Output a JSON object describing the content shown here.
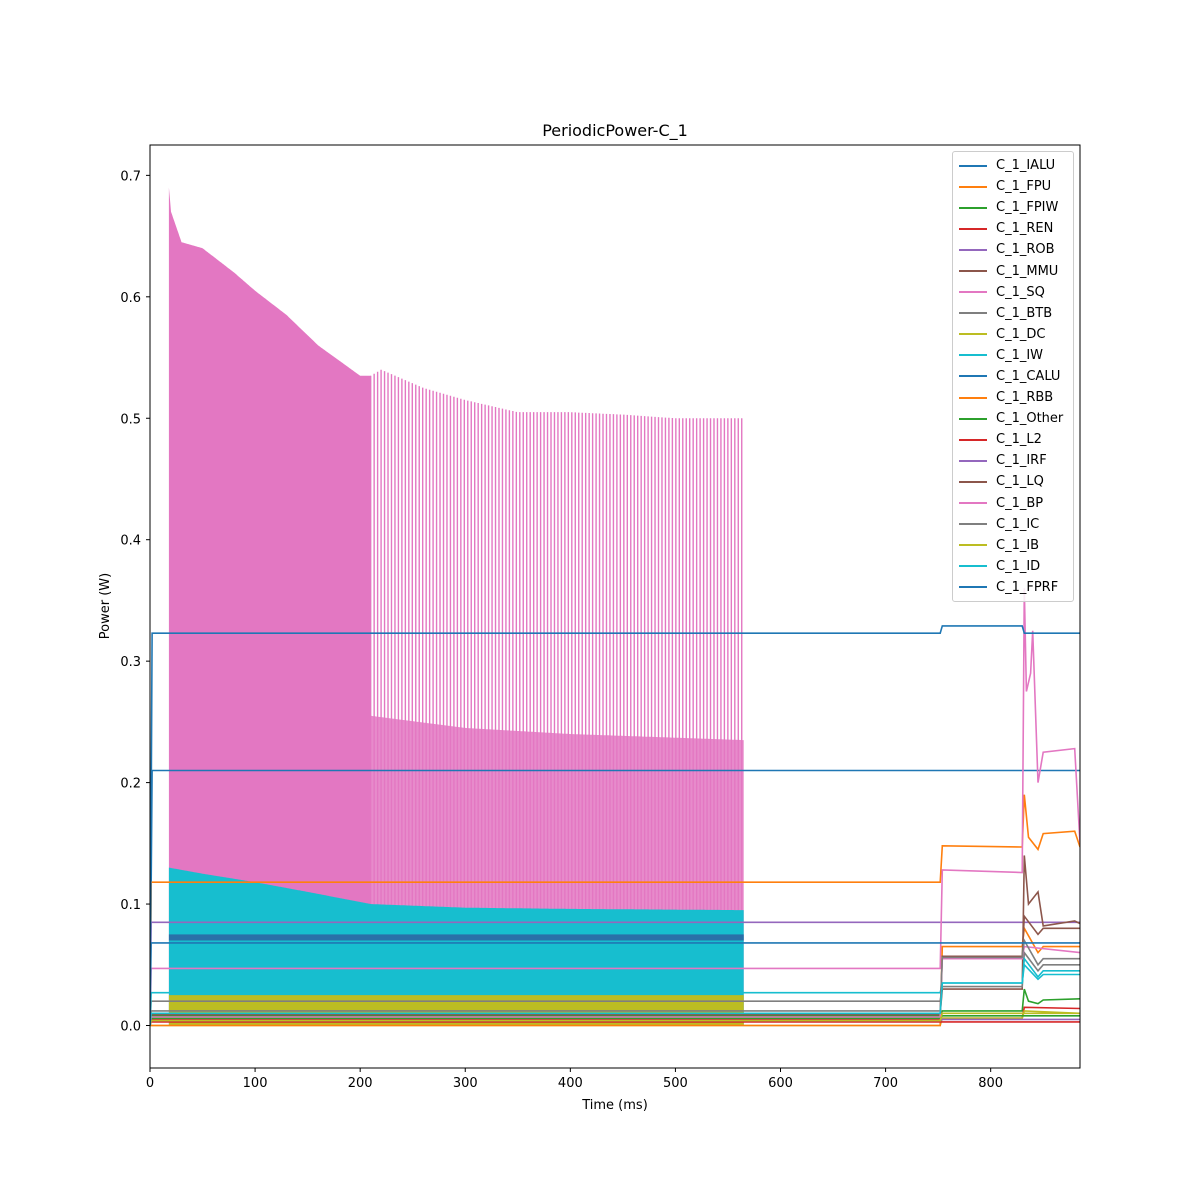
{
  "chart_data": {
    "type": "line",
    "title": "PeriodicPower-C_1",
    "xlabel": "Time (ms)",
    "ylabel": "Power (W)",
    "xlim": [
      0,
      885
    ],
    "ylim": [
      -0.035,
      0.725
    ],
    "x_ticks": [
      "0",
      "100",
      "200",
      "300",
      "400",
      "500",
      "600",
      "700",
      "800"
    ],
    "x_tick_values": [
      0,
      100,
      200,
      300,
      400,
      500,
      600,
      700,
      800
    ],
    "y_ticks": [
      "0.0",
      "0.1",
      "0.2",
      "0.3",
      "0.4",
      "0.5",
      "0.6",
      "0.7"
    ],
    "y_tick_values": [
      0.0,
      0.1,
      0.2,
      0.3,
      0.4,
      0.5,
      0.6,
      0.7
    ],
    "grid": false,
    "legend_position": "top-right",
    "series": [
      {
        "name": "C_1_IALU",
        "color": "#1f77b4",
        "points": [
          [
            0,
            0.0
          ],
          [
            2,
            0.21
          ],
          [
            752,
            0.21
          ],
          [
            885,
            0.21
          ]
        ]
      },
      {
        "name": "C_1_FPU",
        "color": "#ff7f0e",
        "points": [
          [
            0,
            0.0
          ],
          [
            1,
            0.118
          ],
          [
            752,
            0.118
          ],
          [
            754,
            0.148
          ],
          [
            830,
            0.147
          ],
          [
            832,
            0.19
          ],
          [
            836,
            0.155
          ],
          [
            845,
            0.145
          ],
          [
            850,
            0.158
          ],
          [
            880,
            0.16
          ],
          [
            885,
            0.147
          ]
        ]
      },
      {
        "name": "C_1_FPIW",
        "color": "#2ca02c",
        "points": [
          [
            0,
            0.0
          ],
          [
            1,
            0.008
          ],
          [
            752,
            0.008
          ],
          [
            754,
            0.012
          ],
          [
            830,
            0.012
          ],
          [
            832,
            0.03
          ],
          [
            836,
            0.02
          ],
          [
            845,
            0.018
          ],
          [
            850,
            0.021
          ],
          [
            885,
            0.022
          ]
        ]
      },
      {
        "name": "C_1_REN",
        "color": "#d62728",
        "points": [
          [
            0,
            0.0
          ],
          [
            1,
            0.005
          ],
          [
            752,
            0.005
          ],
          [
            754,
            0.006
          ],
          [
            830,
            0.006
          ],
          [
            832,
            0.015
          ],
          [
            885,
            0.014
          ]
        ]
      },
      {
        "name": "C_1_ROB",
        "color": "#9467bd",
        "points": [
          [
            0,
            0.0
          ],
          [
            1,
            0.085
          ],
          [
            752,
            0.085
          ],
          [
            885,
            0.085
          ]
        ]
      },
      {
        "name": "C_1_MMU",
        "color": "#8c564b",
        "points": [
          [
            0,
            0.0
          ],
          [
            1,
            0.01
          ],
          [
            752,
            0.01
          ],
          [
            754,
            0.03
          ],
          [
            830,
            0.03
          ],
          [
            832,
            0.14
          ],
          [
            836,
            0.1
          ],
          [
            845,
            0.11
          ],
          [
            850,
            0.082
          ],
          [
            880,
            0.086
          ],
          [
            885,
            0.084
          ]
        ]
      },
      {
        "name": "C_1_SQ",
        "color": "#e377c2",
        "points": [
          [
            0,
            0.0
          ],
          [
            1,
            0.047
          ],
          [
            752,
            0.047
          ],
          [
            754,
            0.128
          ],
          [
            830,
            0.126
          ],
          [
            832,
            0.36
          ],
          [
            834,
            0.275
          ],
          [
            838,
            0.29
          ],
          [
            840,
            0.325
          ],
          [
            845,
            0.2
          ],
          [
            850,
            0.225
          ],
          [
            880,
            0.228
          ],
          [
            885,
            0.15
          ]
        ]
      },
      {
        "name": "C_1_BTB",
        "color": "#7f7f7f",
        "points": [
          [
            0,
            0.0
          ],
          [
            1,
            0.02
          ],
          [
            752,
            0.02
          ],
          [
            754,
            0.032
          ],
          [
            830,
            0.032
          ],
          [
            832,
            0.06
          ],
          [
            845,
            0.045
          ],
          [
            850,
            0.05
          ],
          [
            885,
            0.05
          ]
        ]
      },
      {
        "name": "C_1_DC",
        "color": "#bcbd22",
        "points": [
          [
            0,
            0.0
          ],
          [
            1,
            0.0
          ],
          [
            752,
            0.0
          ],
          [
            754,
            0.006
          ],
          [
            830,
            0.006
          ],
          [
            832,
            0.012
          ],
          [
            885,
            0.01
          ]
        ]
      },
      {
        "name": "C_1_IW",
        "color": "#17becf",
        "points": [
          [
            0,
            0.0
          ],
          [
            1,
            0.027
          ],
          [
            752,
            0.027
          ],
          [
            754,
            0.035
          ],
          [
            830,
            0.035
          ],
          [
            832,
            0.055
          ],
          [
            845,
            0.04
          ],
          [
            850,
            0.045
          ],
          [
            885,
            0.045
          ]
        ]
      },
      {
        "name": "C_1_CALU",
        "color": "#1f77b4",
        "points": [
          [
            0,
            0.0
          ],
          [
            2,
            0.323
          ],
          [
            752,
            0.323
          ],
          [
            754,
            0.329
          ],
          [
            830,
            0.329
          ],
          [
            832,
            0.323
          ],
          [
            885,
            0.323
          ]
        ]
      },
      {
        "name": "C_1_RBB",
        "color": "#ff7f0e",
        "points": [
          [
            0,
            0.0
          ],
          [
            1,
            0.0
          ],
          [
            752,
            0.0
          ],
          [
            754,
            0.065
          ],
          [
            830,
            0.065
          ],
          [
            832,
            0.08
          ],
          [
            845,
            0.06
          ],
          [
            850,
            0.065
          ],
          [
            885,
            0.065
          ]
        ]
      },
      {
        "name": "C_1_Other",
        "color": "#2ca02c",
        "points": [
          [
            0,
            0.0
          ],
          [
            1,
            0.006
          ],
          [
            752,
            0.006
          ],
          [
            754,
            0.008
          ],
          [
            885,
            0.008
          ]
        ]
      },
      {
        "name": "C_1_L2",
        "color": "#d62728",
        "points": [
          [
            0,
            0.0
          ],
          [
            1,
            0.003
          ],
          [
            885,
            0.003
          ]
        ]
      },
      {
        "name": "C_1_IRF",
        "color": "#9467bd",
        "points": [
          [
            0,
            0.0
          ],
          [
            1,
            0.004
          ],
          [
            752,
            0.004
          ],
          [
            754,
            0.005
          ],
          [
            885,
            0.005
          ]
        ]
      },
      {
        "name": "C_1_LQ",
        "color": "#8c564b",
        "points": [
          [
            0,
            0.0
          ],
          [
            1,
            0.009
          ],
          [
            752,
            0.009
          ],
          [
            754,
            0.057
          ],
          [
            830,
            0.057
          ],
          [
            832,
            0.09
          ],
          [
            845,
            0.075
          ],
          [
            850,
            0.08
          ],
          [
            885,
            0.08
          ]
        ]
      },
      {
        "name": "C_1_BP",
        "color": "#e377c2",
        "points": [
          [
            0,
            0.0
          ],
          [
            1,
            0.007
          ],
          [
            752,
            0.007
          ],
          [
            754,
            0.055
          ],
          [
            830,
            0.055
          ],
          [
            832,
            0.065
          ],
          [
            885,
            0.06
          ]
        ]
      },
      {
        "name": "C_1_IC",
        "color": "#7f7f7f",
        "points": [
          [
            0,
            0.0
          ],
          [
            1,
            0.012
          ],
          [
            752,
            0.012
          ],
          [
            754,
            0.056
          ],
          [
            830,
            0.056
          ],
          [
            832,
            0.07
          ],
          [
            845,
            0.05
          ],
          [
            850,
            0.055
          ],
          [
            885,
            0.055
          ]
        ]
      },
      {
        "name": "C_1_IB",
        "color": "#bcbd22",
        "points": [
          [
            0,
            0.0
          ],
          [
            1,
            0.004
          ],
          [
            752,
            0.004
          ],
          [
            754,
            0.01
          ],
          [
            885,
            0.01
          ]
        ]
      },
      {
        "name": "C_1_ID",
        "color": "#17becf",
        "points": [
          [
            0,
            0.0
          ],
          [
            1,
            0.01
          ],
          [
            752,
            0.01
          ],
          [
            754,
            0.035
          ],
          [
            830,
            0.035
          ],
          [
            832,
            0.05
          ],
          [
            845,
            0.038
          ],
          [
            850,
            0.042
          ],
          [
            885,
            0.042
          ]
        ]
      },
      {
        "name": "C_1_FPRF",
        "color": "#1f77b4",
        "points": [
          [
            0,
            0.0
          ],
          [
            1,
            0.068
          ],
          [
            752,
            0.068
          ],
          [
            885,
            0.068
          ]
        ]
      }
    ],
    "oscillating_region": {
      "x_range": [
        18,
        565
      ],
      "phase_change_x": 210,
      "SQ_envelope_peak": [
        [
          18,
          0.69
        ],
        [
          20,
          0.67
        ],
        [
          30,
          0.645
        ],
        [
          50,
          0.64
        ],
        [
          80,
          0.62
        ],
        [
          100,
          0.605
        ],
        [
          130,
          0.585
        ],
        [
          160,
          0.56
        ],
        [
          200,
          0.535
        ],
        [
          210,
          0.535
        ],
        [
          220,
          0.54
        ],
        [
          260,
          0.525
        ],
        [
          300,
          0.515
        ],
        [
          350,
          0.505
        ],
        [
          400,
          0.505
        ],
        [
          450,
          0.503
        ],
        [
          500,
          0.5
        ],
        [
          565,
          0.5
        ]
      ],
      "SQ_mid_peak_after_phase": [
        [
          210,
          0.255
        ],
        [
          300,
          0.245
        ],
        [
          400,
          0.24
        ],
        [
          565,
          0.235
        ]
      ],
      "IW_envelope_peak": [
        [
          18,
          0.13
        ],
        [
          50,
          0.125
        ],
        [
          100,
          0.118
        ],
        [
          150,
          0.11
        ],
        [
          210,
          0.1
        ],
        [
          300,
          0.097
        ],
        [
          400,
          0.096
        ],
        [
          565,
          0.095
        ]
      ],
      "FPRF_band": [
        0.07,
        0.075
      ],
      "DC_band_top": 0.025
    }
  }
}
